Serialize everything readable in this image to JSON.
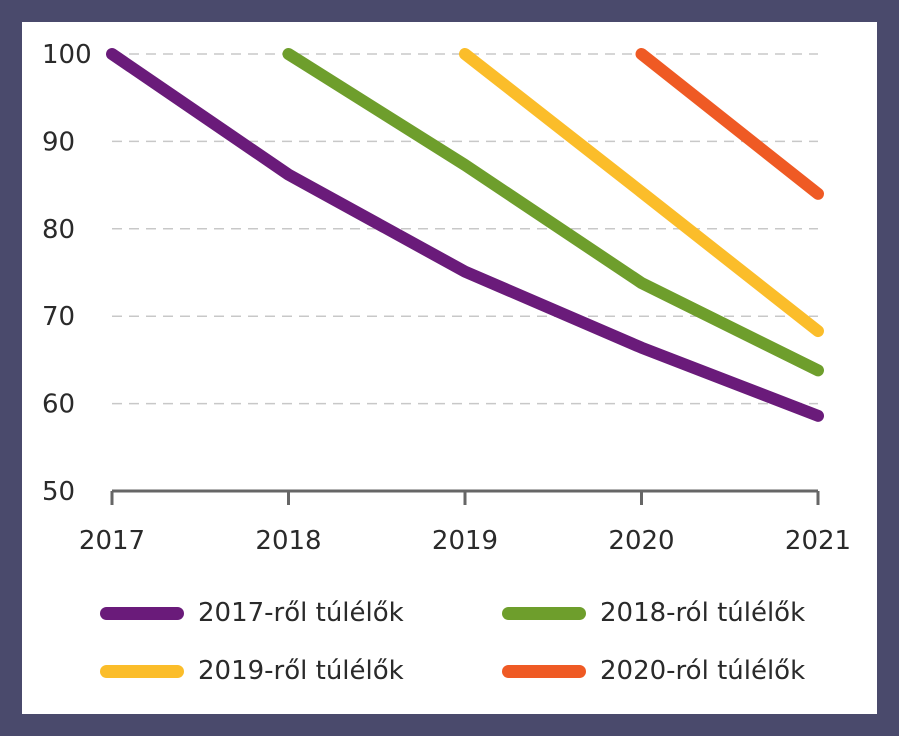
{
  "chart_data": {
    "type": "line",
    "title": "",
    "xlabel": "",
    "ylabel": "",
    "x": [
      "2017",
      "2018",
      "2019",
      "2020",
      "2021"
    ],
    "ylim": [
      50,
      100
    ],
    "yticks": [
      "50",
      "60",
      "70",
      "80",
      "90",
      "100"
    ],
    "grid": true,
    "legend": "bottom",
    "series": [
      {
        "name": "2017-ről túlélők",
        "color": "#6a1b7a",
        "values": [
          100,
          86.2,
          75.1,
          66.4,
          58.6
        ]
      },
      {
        "name": "2018-ról túlélők",
        "color": "#6e9e2c",
        "values": [
          null,
          100,
          87.3,
          73.8,
          63.8
        ]
      },
      {
        "name": "2019-ről túlélők",
        "color": "#fbbd2a",
        "values": [
          null,
          null,
          100,
          84.2,
          68.3
        ]
      },
      {
        "name": "2020-ról túlélők",
        "color": "#ef5a24",
        "values": [
          null,
          null,
          null,
          100,
          84.0
        ]
      }
    ]
  }
}
